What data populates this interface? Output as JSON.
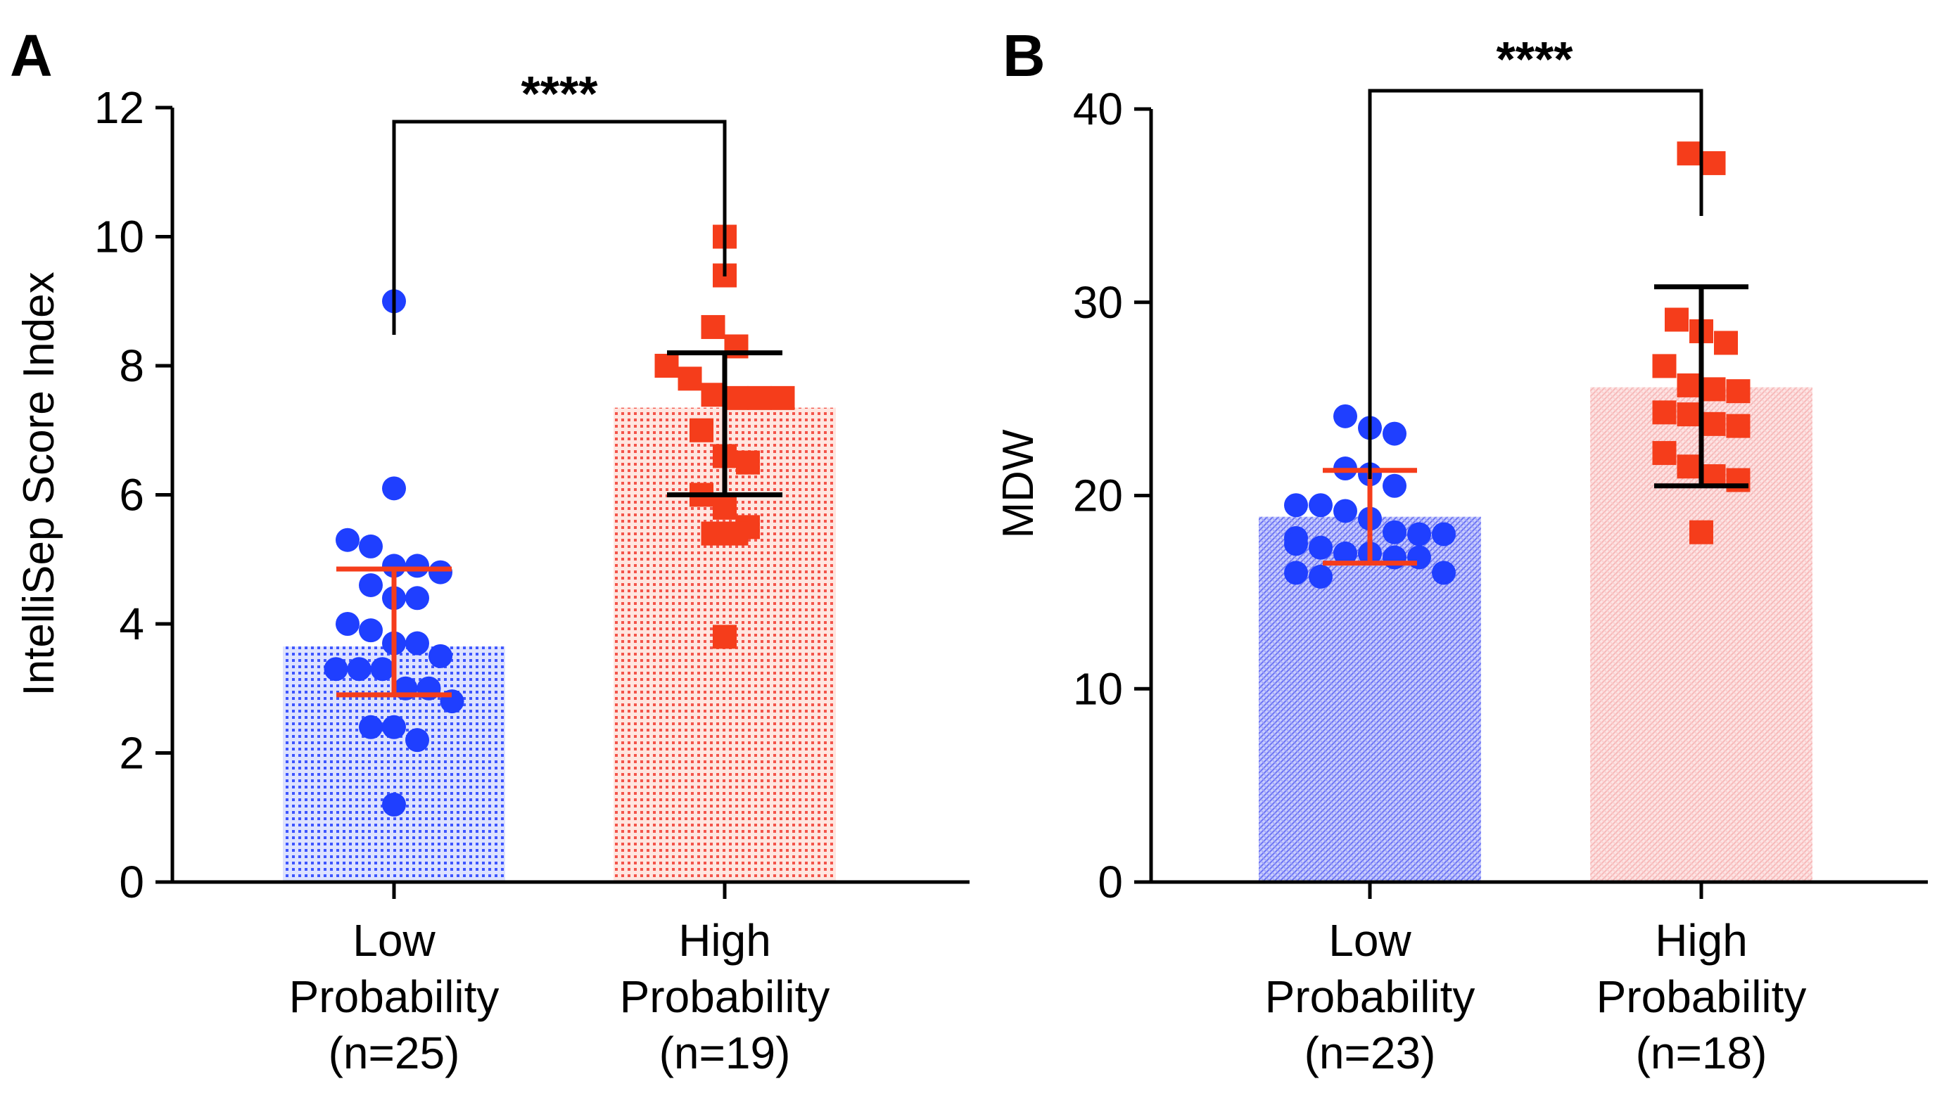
{
  "chart_data": [
    {
      "type": "bar",
      "panel": "A",
      "title": "",
      "xlabel": "",
      "ylabel": "IntelliSep Score Index",
      "ylim": [
        0,
        12
      ],
      "yticks": [
        0,
        2,
        4,
        6,
        8,
        10,
        12
      ],
      "grid": false,
      "significance": "****",
      "categories": [
        {
          "lines": [
            "Low",
            "Probability",
            "(n=25)"
          ]
        },
        {
          "lines": [
            "High",
            "Probability",
            "(n=19)"
          ]
        }
      ],
      "series": [
        {
          "name": "Low Probability (n=25)",
          "color": "#1f3fff",
          "marker": "circle",
          "bar_value": 3.65,
          "error": [
            2.9,
            4.85
          ],
          "error_color": "#f53d1b",
          "points": [
            9.0,
            6.1,
            5.3,
            5.2,
            4.9,
            4.9,
            4.8,
            4.6,
            4.4,
            4.4,
            4.0,
            3.9,
            3.7,
            3.7,
            3.5,
            3.3,
            3.3,
            3.3,
            3.0,
            3.0,
            2.8,
            2.4,
            2.4,
            2.2,
            1.2
          ]
        },
        {
          "name": "High Probability (n=19)",
          "color": "#f53d1b",
          "marker": "square",
          "bar_value": 7.35,
          "error": [
            6.0,
            8.2
          ],
          "error_color": "#000000",
          "points": [
            10.0,
            9.4,
            8.6,
            8.3,
            8.0,
            7.8,
            7.55,
            7.5,
            7.5,
            7.5,
            7.0,
            6.6,
            6.5,
            6.0,
            5.8,
            5.5,
            5.4,
            5.4,
            3.8
          ]
        }
      ]
    },
    {
      "type": "bar",
      "panel": "B",
      "title": "",
      "xlabel": "",
      "ylabel": "MDW",
      "ylim": [
        0,
        40
      ],
      "yticks": [
        0,
        10,
        20,
        30,
        40
      ],
      "grid": false,
      "significance": "****",
      "categories": [
        {
          "lines": [
            "Low",
            "Probability",
            "(n=23)"
          ]
        },
        {
          "lines": [
            "High",
            "Probability",
            "(n=18)"
          ]
        }
      ],
      "series": [
        {
          "name": "Low Probability (n=23)",
          "color": "#1f3fff",
          "marker": "circle",
          "bar_value": 18.9,
          "error": [
            16.5,
            21.3
          ],
          "error_color": "#f53d1b",
          "points": [
            24.1,
            23.5,
            23.2,
            21.4,
            21.1,
            20.5,
            19.5,
            19.5,
            19.2,
            18.8,
            18.1,
            18.0,
            18.0,
            17.8,
            17.5,
            17.3,
            17.0,
            17.0,
            16.8,
            16.8,
            16.0,
            16.0,
            15.8
          ]
        },
        {
          "name": "High Probability (n=18)",
          "color": "#f53d1b",
          "marker": "square",
          "bar_value": 25.6,
          "error": [
            20.5,
            30.8
          ],
          "error_color": "#000000",
          "points": [
            37.7,
            37.2,
            29.1,
            28.5,
            27.9,
            26.7,
            25.7,
            25.5,
            25.4,
            24.3,
            24.2,
            23.7,
            23.6,
            22.2,
            21.5,
            21.0,
            20.8,
            18.1
          ]
        }
      ]
    }
  ],
  "panels": [
    {
      "letter": "A",
      "ylabel": "IntelliSep Score Index",
      "stars": "****"
    },
    {
      "letter": "B",
      "ylabel": "MDW",
      "stars": "****"
    }
  ]
}
